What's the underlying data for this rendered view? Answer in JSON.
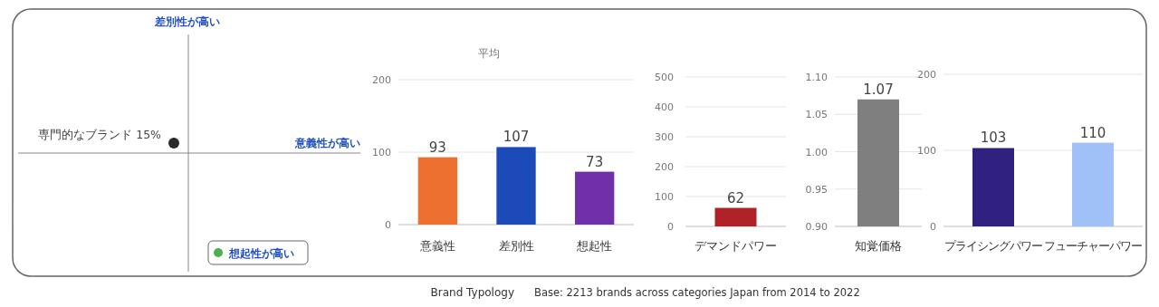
{
  "chart_data": [
    {
      "type": "other",
      "annotations": [
        "差別性が高い",
        "意義性が高い",
        "想起性が高い",
        "専門的なブランド 15%",
        "Brand Typology",
        "Base: 2213 brands across categories Japan from 2014 to 2022"
      ]
    },
    {
      "type": "bar",
      "title": "平均",
      "categories": [
        "意義性",
        "差別性",
        "想起性"
      ],
      "values": [
        93,
        107,
        73
      ],
      "colors": [
        "#ed7030",
        "#1c4ab8",
        "#7130a8"
      ],
      "ylim": [
        0,
        200
      ],
      "yticks": [
        0,
        100,
        200
      ],
      "grid": "y",
      "data_labels": true
    },
    {
      "type": "bar",
      "categories": [
        "デマンドパワー"
      ],
      "values": [
        62
      ],
      "colors": [
        "#b02228"
      ],
      "ylim": [
        0,
        500
      ],
      "yticks": [
        0,
        100,
        200,
        300,
        400,
        500
      ],
      "grid": "y",
      "data_labels": true
    },
    {
      "type": "bar",
      "categories": [
        "知覚価格"
      ],
      "values": [
        1.07
      ],
      "colors": [
        "#7f7f7f"
      ],
      "ylim": [
        0.9,
        1.1
      ],
      "yticks": [
        {
          "value": 0.9,
          "label": "0.90"
        },
        0.95,
        {
          "value": 1.0,
          "label": "1.00"
        },
        1.05,
        {
          "value": 1.1,
          "label": "1.10"
        }
      ],
      "grid": "y",
      "data_labels": true
    },
    {
      "type": "bar",
      "categories": [
        "プライシングパワー",
        "フューチャーパワー"
      ],
      "values": [
        103,
        110
      ],
      "colors": [
        "#302080",
        "#a0c0f8"
      ],
      "ylim": [
        0,
        200
      ],
      "yticks": [
        0,
        100,
        200
      ],
      "grid": "y",
      "data_labels": true
    }
  ]
}
